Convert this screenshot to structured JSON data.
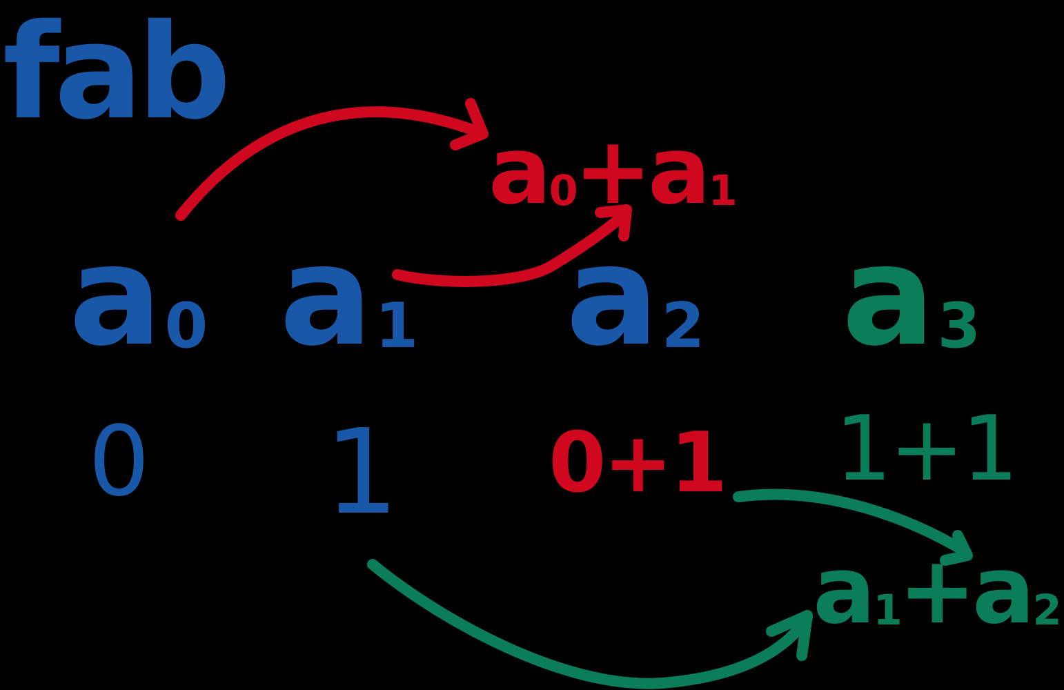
{
  "colors": {
    "background": "#000000",
    "blue": "#1957a8",
    "red": "#d0081f",
    "green": "#0b7d5a"
  },
  "title": "fab",
  "terms": [
    {
      "base": "a",
      "sub": "0",
      "value": "0"
    },
    {
      "base": "a",
      "sub": "1",
      "value": "1"
    },
    {
      "base": "a",
      "sub": "2",
      "value": "0+1"
    },
    {
      "base": "a",
      "sub": "3",
      "value": "1+1"
    }
  ],
  "sums": {
    "red": {
      "a": "a",
      "a_sub": "0",
      "plus": "+",
      "b": "a",
      "b_sub": "1"
    },
    "green": {
      "a": "a",
      "a_sub": "1",
      "plus": "+",
      "b": "a",
      "b_sub": "2"
    }
  },
  "arrows": [
    {
      "name": "a0-to-red-sum",
      "color": "red"
    },
    {
      "name": "a1-to-a2",
      "color": "red"
    },
    {
      "name": "value-a2-to-green-sum",
      "color": "green"
    },
    {
      "name": "value-a1-to-green-sum",
      "color": "green"
    }
  ]
}
